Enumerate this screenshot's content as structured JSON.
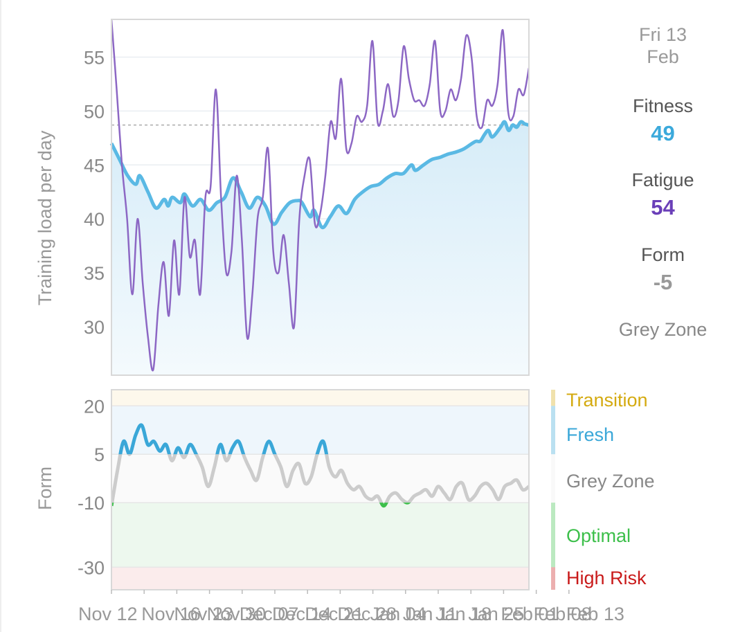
{
  "summary": {
    "date_line1": "Fri 13",
    "date_line2": "Feb",
    "fitness_label": "Fitness",
    "fitness_value": "49",
    "fatigue_label": "Fatigue",
    "fatigue_value": "54",
    "form_label": "Form",
    "form_value": "-5",
    "zone": "Grey Zone"
  },
  "colors": {
    "fitness": "#5ab9e4",
    "fatigue": "#8c67c4",
    "fatigue_text": "#6a3fb8",
    "fitness_text": "#3ba9db",
    "form_grey": "#cccccc",
    "form_fresh": "#3aa7d8",
    "form_optimal": "#3cbf4a",
    "transition": "#d4aa10",
    "fresh": "#3aa7d8",
    "grey_zone": "#888888",
    "optimal": "#3cbf4a",
    "high_risk": "#c91a1a"
  },
  "chart_data": [
    {
      "type": "line",
      "title": "",
      "ylabel": "Training load per day",
      "ylim": [
        25.5,
        58.5
      ],
      "yticks": [
        30,
        35,
        40,
        45,
        50,
        55
      ],
      "reference_line": 48.7,
      "x": [
        "Nov 12",
        "Nov 16",
        "Nov 23",
        "Nov 30",
        "Dec 07",
        "Dec 14",
        "Dec 21",
        "Dec 28",
        "Jan 04",
        "Jan 11",
        "Jan 18",
        "Jan 25",
        "Feb 01",
        "Feb 08",
        "Feb 13"
      ],
      "series": [
        {
          "name": "Fitness",
          "points": [
            [
              0,
              47
            ],
            [
              2,
              45.5
            ],
            [
              4,
              44
            ],
            [
              6,
              43.2
            ],
            [
              7,
              44
            ],
            [
              9,
              42.5
            ],
            [
              11,
              41
            ],
            [
              13,
              41.8
            ],
            [
              14,
              41.2
            ],
            [
              15,
              42
            ],
            [
              17,
              41.5
            ],
            [
              18,
              42.3
            ],
            [
              20,
              41.2
            ],
            [
              22,
              41.8
            ],
            [
              24,
              40.8
            ],
            [
              26,
              41.5
            ],
            [
              28,
              42
            ],
            [
              30,
              43.8
            ],
            [
              32,
              42.5
            ],
            [
              34,
              41
            ],
            [
              36,
              42
            ],
            [
              38,
              41.2
            ],
            [
              40,
              39.5
            ],
            [
              42,
              40.6
            ],
            [
              44,
              41.5
            ],
            [
              46,
              41.7
            ],
            [
              47,
              41.5
            ],
            [
              49,
              40.2
            ],
            [
              50,
              40.8
            ],
            [
              52,
              39.2
            ],
            [
              54,
              40.2
            ],
            [
              56,
              41.2
            ],
            [
              58,
              40.5
            ],
            [
              60,
              41.8
            ],
            [
              62,
              42.5
            ],
            [
              64,
              43
            ],
            [
              66,
              43.2
            ],
            [
              68,
              43.8
            ],
            [
              70,
              44.2
            ],
            [
              72,
              44.2
            ],
            [
              74,
              45
            ],
            [
              75,
              44.5
            ],
            [
              77,
              45
            ],
            [
              79,
              45.5
            ],
            [
              81,
              45.7
            ],
            [
              83,
              46
            ],
            [
              85,
              46.2
            ],
            [
              87,
              46.5
            ],
            [
              89,
              47
            ],
            [
              90,
              47.2
            ],
            [
              91,
              47.2
            ],
            [
              92,
              47.8
            ],
            [
              93,
              48.2
            ],
            [
              94,
              47.6
            ],
            [
              96,
              48.5
            ],
            [
              97,
              49
            ],
            [
              98,
              48.2
            ],
            [
              99,
              48.7
            ],
            [
              100,
              48.5
            ],
            [
              101,
              49
            ],
            [
              102,
              48.8
            ],
            [
              103,
              48.7
            ]
          ]
        },
        {
          "name": "Fatigue",
          "points": [
            [
              0,
              58.5
            ],
            [
              1,
              52
            ],
            [
              2,
              45
            ],
            [
              3,
              40
            ],
            [
              4,
              33
            ],
            [
              5,
              40
            ],
            [
              6,
              34
            ],
            [
              7,
              29
            ],
            [
              8,
              26
            ],
            [
              9,
              32
            ],
            [
              10,
              36
            ],
            [
              11,
              31
            ],
            [
              12,
              38
            ],
            [
              13,
              33
            ],
            [
              14,
              42
            ],
            [
              15,
              36.5
            ],
            [
              16,
              38
            ],
            [
              17,
              33
            ],
            [
              18,
              42
            ],
            [
              19,
              43
            ],
            [
              20,
              52
            ],
            [
              21,
              42
            ],
            [
              22,
              35
            ],
            [
              23,
              37
            ],
            [
              24,
              44
            ],
            [
              25,
              38
            ],
            [
              26,
              29
            ],
            [
              27,
              33
            ],
            [
              28,
              40
            ],
            [
              29,
              42
            ],
            [
              30,
              46.5
            ],
            [
              31,
              37
            ],
            [
              32,
              35
            ],
            [
              33,
              38.5
            ],
            [
              34,
              34
            ],
            [
              35,
              30
            ],
            [
              36,
              40
            ],
            [
              37,
              44
            ],
            [
              38,
              45.5
            ],
            [
              39,
              39.5
            ],
            [
              40,
              40.5
            ],
            [
              41,
              44
            ],
            [
              42,
              49
            ],
            [
              43,
              47.5
            ],
            [
              44,
              53
            ],
            [
              45,
              46.5
            ],
            [
              46,
              47
            ],
            [
              47,
              49.5
            ],
            [
              48,
              49
            ],
            [
              49,
              50.5
            ],
            [
              50,
              56.5
            ],
            [
              51,
              49
            ],
            [
              52,
              50
            ],
            [
              53,
              52.5
            ],
            [
              54,
              49.5
            ],
            [
              55,
              51
            ],
            [
              56,
              56
            ],
            [
              57,
              53
            ],
            [
              58,
              51
            ],
            [
              59,
              51
            ],
            [
              60,
              50.5
            ],
            [
              61,
              52.5
            ],
            [
              62,
              56.5
            ],
            [
              63,
              50
            ],
            [
              64,
              50
            ],
            [
              65,
              52
            ],
            [
              66,
              51
            ],
            [
              67,
              53
            ],
            [
              68,
              57
            ],
            [
              69,
              55
            ],
            [
              70,
              49.5
            ],
            [
              71,
              48.5
            ],
            [
              72,
              51
            ],
            [
              73,
              50.5
            ],
            [
              74,
              52.5
            ],
            [
              75,
              57.5
            ],
            [
              76,
              50
            ],
            [
              77,
              49.5
            ],
            [
              78,
              52
            ],
            [
              79,
              51.5
            ],
            [
              80,
              54
            ]
          ]
        }
      ]
    },
    {
      "type": "line",
      "title": "",
      "ylabel": "Form",
      "ylim": [
        -37,
        25
      ],
      "yticks": [
        20,
        5,
        -10,
        -30
      ],
      "x": [
        "Nov 12",
        "Nov 16",
        "Nov 23",
        "Nov 30",
        "Dec 07",
        "Dec 14",
        "Dec 21",
        "Dec 28",
        "Jan 04",
        "Jan 11",
        "Jan 18",
        "Jan 25",
        "Feb 01",
        "Feb 08",
        "Feb 13"
      ],
      "zones": [
        {
          "name": "Transition",
          "from": 20,
          "to": 25
        },
        {
          "name": "Fresh",
          "from": 5,
          "to": 20
        },
        {
          "name": "Grey Zone",
          "from": -10,
          "to": 5
        },
        {
          "name": "Optimal",
          "from": -30,
          "to": -10
        },
        {
          "name": "High Risk",
          "from": -37,
          "to": -30
        }
      ],
      "series": [
        {
          "name": "Form",
          "points": [
            [
              0,
              -11
            ],
            [
              2,
              0
            ],
            [
              4,
              9
            ],
            [
              6,
              5
            ],
            [
              8,
              11
            ],
            [
              10,
              14
            ],
            [
              12,
              8
            ],
            [
              14,
              9
            ],
            [
              16,
              6
            ],
            [
              18,
              8
            ],
            [
              20,
              3
            ],
            [
              22,
              7
            ],
            [
              24,
              4
            ],
            [
              26,
              8
            ],
            [
              28,
              5
            ],
            [
              30,
              1
            ],
            [
              32,
              -5
            ],
            [
              34,
              1
            ],
            [
              36,
              8
            ],
            [
              38,
              3
            ],
            [
              40,
              7
            ],
            [
              42,
              9
            ],
            [
              44,
              4
            ],
            [
              46,
              0
            ],
            [
              48,
              -3
            ],
            [
              50,
              4
            ],
            [
              52,
              9
            ],
            [
              54,
              5
            ],
            [
              56,
              1
            ],
            [
              58,
              -5
            ],
            [
              60,
              0
            ],
            [
              62,
              2
            ],
            [
              64,
              -4
            ],
            [
              66,
              -2
            ],
            [
              68,
              5
            ],
            [
              70,
              9
            ],
            [
              72,
              1
            ],
            [
              74,
              -2
            ],
            [
              76,
              0
            ],
            [
              78,
              -4
            ],
            [
              80,
              -6
            ],
            [
              82,
              -5
            ],
            [
              84,
              -8
            ],
            [
              86,
              -9
            ],
            [
              88,
              -8
            ],
            [
              90,
              -11
            ],
            [
              92,
              -8
            ],
            [
              94,
              -7
            ],
            [
              96,
              -9
            ],
            [
              98,
              -10
            ],
            [
              100,
              -8
            ],
            [
              102,
              -7
            ],
            [
              104,
              -6
            ],
            [
              106,
              -8
            ],
            [
              108,
              -5
            ],
            [
              110,
              -7
            ],
            [
              112,
              -9
            ],
            [
              114,
              -5
            ],
            [
              116,
              -4
            ],
            [
              118,
              -9
            ],
            [
              120,
              -8
            ],
            [
              122,
              -5
            ],
            [
              124,
              -4
            ],
            [
              126,
              -6
            ],
            [
              128,
              -9
            ],
            [
              130,
              -5
            ],
            [
              132,
              -4
            ],
            [
              134,
              -3
            ],
            [
              136,
              -6
            ],
            [
              138,
              -5
            ]
          ]
        }
      ]
    }
  ]
}
